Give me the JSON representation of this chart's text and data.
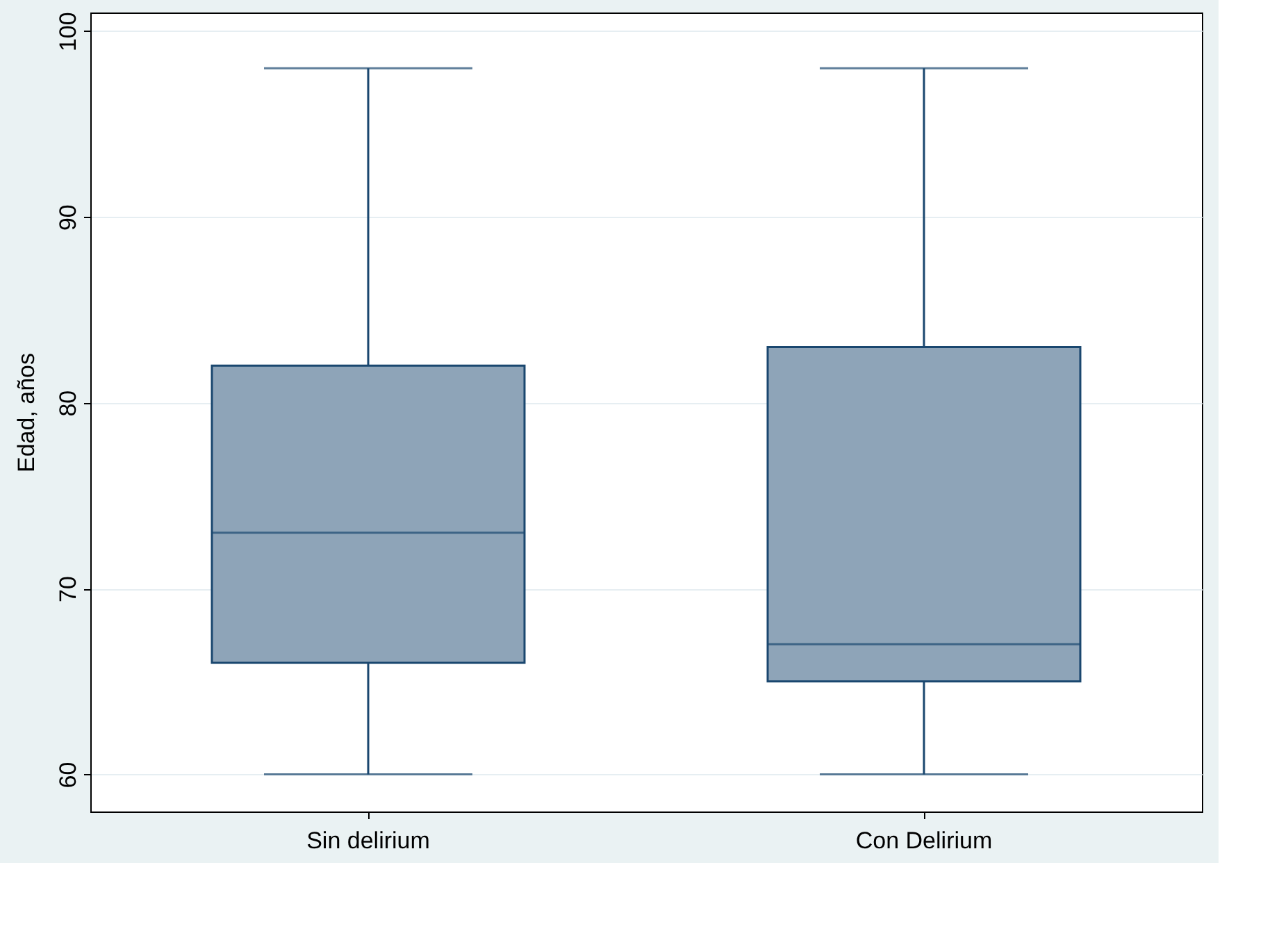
{
  "chart_data": {
    "type": "box",
    "ylabel": "Edad, años",
    "categories": [
      "Sin delirium",
      "Con Delirium"
    ],
    "boxes": [
      {
        "low": 60,
        "q1": 66,
        "median": 73,
        "q3": 82,
        "high": 98
      },
      {
        "low": 60,
        "q1": 65,
        "median": 67,
        "q3": 83,
        "high": 98
      }
    ],
    "color": "#8ea4b8",
    "ylim": [
      58,
      101
    ],
    "yticks": [
      60,
      70,
      80,
      90,
      100
    ],
    "grid": "y"
  }
}
